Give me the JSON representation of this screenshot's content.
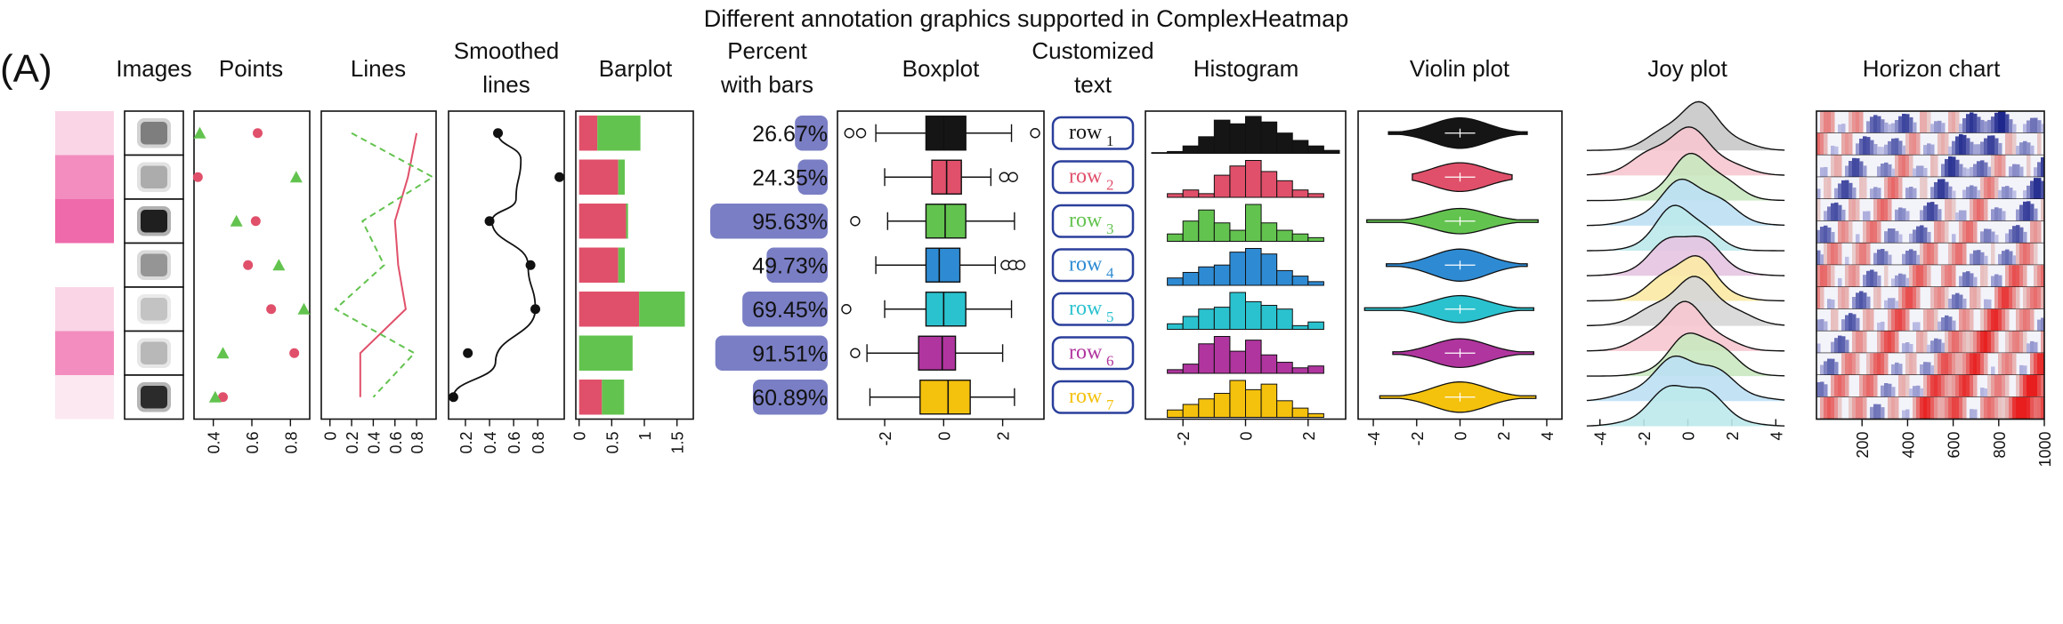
{
  "panel_label": "(A)",
  "title": "Different annotation graphics supported in ComplexHeatmap",
  "headers": {
    "images": "Images",
    "points": "Points",
    "lines": "Lines",
    "smoothed_line1": "Smoothed",
    "smoothed_line2": "lines",
    "barplot": "Barplot",
    "percent_line1": "Percent",
    "percent_line2": "with bars",
    "boxplot": "Boxplot",
    "text_line1": "Customized",
    "text_line2": "text",
    "histogram": "Histogram",
    "violin": "Violin plot",
    "joy": "Joy plot",
    "horizon": "Horizon chart"
  },
  "colors": {
    "red": "#E0506A",
    "green": "#63C34F",
    "purple_bar": "#7A7EC4",
    "text_box_border": "#2A3F9B",
    "row_colors": [
      "#151515",
      "#E0506A",
      "#63C34F",
      "#2E8BD3",
      "#2BC2CF",
      "#B0359F",
      "#F4C10D"
    ],
    "pink_cells": [
      "#F9D5E6",
      "#F38DBF",
      "#EE6AAA",
      "#FFFFFF",
      "#F9D5E6",
      "#F38DBF",
      "#FCE8F1"
    ],
    "image_darkness": [
      0.55,
      0.35,
      0.95,
      0.45,
      0.25,
      0.3,
      0.9
    ]
  },
  "chart_data": [
    {
      "type": "scatter",
      "name": "Points",
      "xticks": [
        "0.4",
        "0.6",
        "0.8"
      ],
      "xlim": [
        0.3,
        0.9
      ],
      "series": [
        {
          "shape": "circle",
          "color": "#E0506A",
          "values": [
            0.63,
            0.32,
            0.62,
            0.58,
            0.7,
            0.82,
            0.45
          ]
        },
        {
          "shape": "triangle",
          "color": "#63C34F",
          "values": [
            0.33,
            0.83,
            0.52,
            0.74,
            0.87,
            0.45,
            0.41
          ]
        }
      ]
    },
    {
      "type": "line",
      "name": "Lines",
      "xticks": [
        "0",
        "0.2",
        "0.4",
        "0.6",
        "0.8"
      ],
      "xlim": [
        -0.08,
        0.98
      ],
      "series": [
        {
          "color": "#E0506A",
          "style": "solid",
          "values": [
            0.8,
            0.72,
            0.6,
            0.63,
            0.7,
            0.28,
            0.28
          ]
        },
        {
          "color": "#63C34F",
          "style": "dashed",
          "values": [
            0.2,
            0.95,
            0.3,
            0.5,
            0.05,
            0.78,
            0.4
          ]
        }
      ]
    },
    {
      "type": "line",
      "name": "Smoothed lines",
      "xticks": [
        "0.2",
        "0.4",
        "0.6",
        "0.8"
      ],
      "xlim": [
        0.06,
        1.02
      ],
      "points": [
        0.47,
        0.98,
        0.4,
        0.74,
        0.78,
        0.22,
        0.1
      ]
    },
    {
      "type": "bar",
      "name": "Barplot",
      "stacked": true,
      "xticks": [
        "0",
        "0.5",
        "1",
        "1.5"
      ],
      "xlim": [
        -0.05,
        1.75
      ],
      "series": [
        {
          "color": "#E0506A",
          "values": [
            0.28,
            0.6,
            0.72,
            0.6,
            0.92,
            0.0,
            0.35
          ]
        },
        {
          "color": "#63C34F",
          "values": [
            0.66,
            0.1,
            0.03,
            0.1,
            0.7,
            0.82,
            0.34
          ]
        }
      ]
    },
    {
      "type": "bar",
      "name": "Percent with bars",
      "labels": [
        "26.67%",
        "24.35%",
        "95.63%",
        "49.73%",
        "69.45%",
        "91.51%",
        "60.89%"
      ],
      "values": [
        26.67,
        24.35,
        95.63,
        49.73,
        69.45,
        91.51,
        60.89
      ]
    },
    {
      "type": "box",
      "name": "Boxplot",
      "xticks": [
        "-2",
        "0",
        "2"
      ],
      "xlim": [
        -3.6,
        3.4
      ],
      "boxes": [
        {
          "min": -2.3,
          "q1": -0.6,
          "med": 0.0,
          "q3": 0.75,
          "max": 2.3,
          "out": [
            -3.2,
            -2.8,
            3.1
          ]
        },
        {
          "min": -2.0,
          "q1": -0.4,
          "med": 0.1,
          "q3": 0.6,
          "max": 1.6,
          "out": [
            2.05,
            2.35
          ]
        },
        {
          "min": -1.9,
          "q1": -0.6,
          "med": 0.05,
          "q3": 0.75,
          "max": 2.4,
          "out": [
            -3.0
          ]
        },
        {
          "min": -2.3,
          "q1": -0.6,
          "med": -0.15,
          "q3": 0.55,
          "max": 1.75,
          "out": [
            2.1,
            2.35,
            2.6
          ]
        },
        {
          "min": -2.0,
          "q1": -0.6,
          "med": 0.0,
          "q3": 0.75,
          "max": 2.3,
          "out": [
            -3.3
          ]
        },
        {
          "min": -2.6,
          "q1": -0.85,
          "med": -0.05,
          "q3": 0.4,
          "max": 2.0,
          "out": [
            -3.0
          ]
        },
        {
          "min": -2.5,
          "q1": -0.8,
          "med": 0.15,
          "q3": 0.9,
          "max": 2.4,
          "out": []
        }
      ]
    },
    {
      "type": "table",
      "name": "Customized text",
      "labels": [
        "row",
        "row",
        "row",
        "row",
        "row",
        "row",
        "row"
      ],
      "subscripts": [
        "1",
        "2",
        "3",
        "4",
        "5",
        "6",
        "7"
      ]
    },
    {
      "type": "bar",
      "name": "Histogram",
      "xticks": [
        "-2",
        "0",
        "2"
      ],
      "xlim": [
        -3.2,
        3.2
      ],
      "bin_start": -3.0,
      "bin_width": 0.5,
      "series": [
        {
          "values": [
            0.02,
            0.05,
            0.2,
            0.45,
            0.9,
            0.8,
            1.0,
            0.85,
            0.55,
            0.35,
            0.2,
            0.08
          ]
        },
        {
          "values": [
            0.0,
            0.1,
            0.2,
            0.1,
            0.6,
            0.85,
            1.0,
            0.7,
            0.45,
            0.2,
            0.1,
            0.0
          ]
        },
        {
          "values": [
            0.0,
            0.2,
            0.55,
            0.85,
            0.5,
            0.3,
            1.0,
            0.5,
            0.3,
            0.2,
            0.1,
            0.0
          ]
        },
        {
          "values": [
            0.0,
            0.2,
            0.35,
            0.5,
            0.55,
            0.9,
            1.0,
            0.85,
            0.4,
            0.25,
            0.1,
            0.0
          ]
        },
        {
          "values": [
            0.0,
            0.15,
            0.35,
            0.55,
            0.6,
            1.0,
            0.75,
            0.65,
            0.55,
            0.1,
            0.2,
            0.0
          ]
        },
        {
          "values": [
            0.0,
            0.1,
            0.25,
            0.8,
            1.0,
            0.6,
            0.9,
            0.5,
            0.3,
            0.15,
            0.2,
            0.0
          ]
        },
        {
          "values": [
            0.0,
            0.2,
            0.35,
            0.5,
            0.65,
            1.0,
            0.75,
            0.9,
            0.45,
            0.25,
            0.1,
            0.0
          ]
        }
      ]
    },
    {
      "type": "area",
      "name": "Violin plot",
      "xticks": [
        "-4",
        "-2",
        "0",
        "2",
        "4"
      ],
      "xlim": [
        -4.7,
        4.7
      ],
      "extent": [
        [
          -3.3,
          3.1
        ],
        [
          -2.2,
          2.4
        ],
        [
          -4.3,
          3.6
        ],
        [
          -3.4,
          3.1
        ],
        [
          -4.4,
          3.4
        ],
        [
          -3.1,
          3.4
        ],
        [
          -3.7,
          3.5
        ]
      ],
      "width": [
        0.9,
        0.85,
        0.75,
        0.95,
        0.8,
        0.85,
        0.9
      ]
    },
    {
      "type": "area",
      "name": "Joy plot",
      "xticks": [
        "-4",
        "-2",
        "0",
        "2",
        "4"
      ],
      "xlim": [
        -5.0,
        5.0
      ],
      "fills": [
        "#C8C8C8",
        "#F6C6CF",
        "#C9E8C0",
        "#BCE0F4",
        "#BDE9EC",
        "#E6C4E1",
        "#FBEAA4",
        "#D6D6D6",
        "#F6C6CF",
        "#C9E8C0",
        "#BCE0F4",
        "#BDE9EC"
      ],
      "centers": [
        0.3,
        -0.2,
        0.4,
        0.1,
        -0.3,
        -0.1,
        0.0,
        0.2,
        -0.2,
        0.5,
        0.0,
        -0.1
      ],
      "spreads": [
        1.3,
        1.5,
        1.2,
        1.4,
        1.1,
        1.3,
        1.2,
        1.5,
        1.3,
        1.2,
        1.6,
        1.4
      ]
    },
    {
      "type": "heatmap",
      "name": "Horizon chart",
      "xticks": [
        "200",
        "400",
        "600",
        "800",
        "1000"
      ],
      "xlim": [
        0,
        1000
      ],
      "rows": 14
    }
  ]
}
